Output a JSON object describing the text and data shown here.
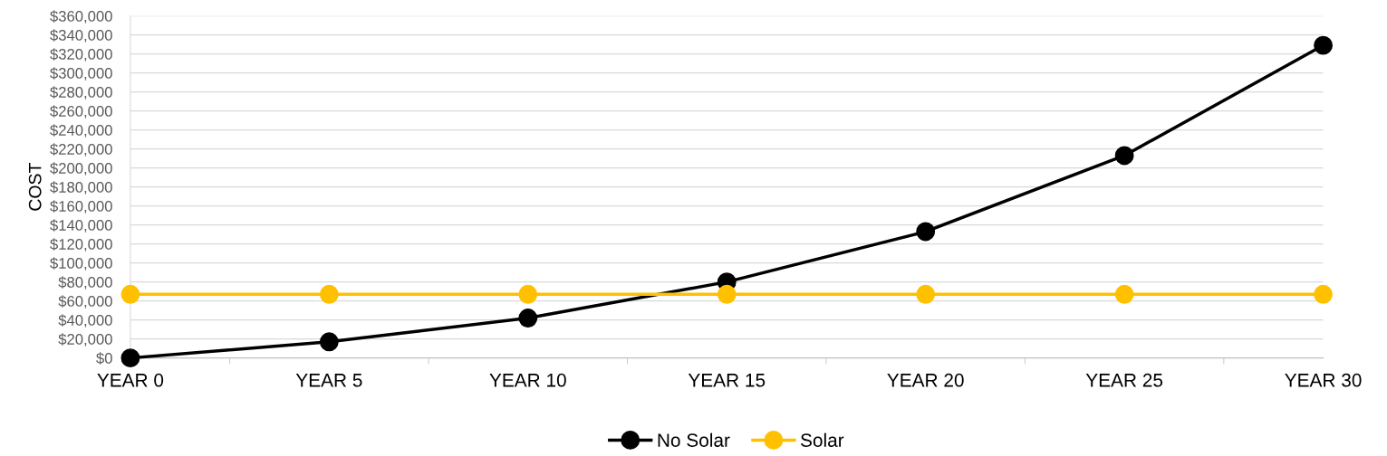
{
  "chart_data": {
    "type": "line",
    "ylabel": "COST",
    "categories": [
      "YEAR 0",
      "YEAR 5",
      "YEAR 10",
      "YEAR 15",
      "YEAR 20",
      "YEAR 25",
      "YEAR 30"
    ],
    "series": [
      {
        "name": "No Solar",
        "color": "#000000",
        "values": [
          0,
          17000,
          42000,
          80000,
          133000,
          213000,
          329000
        ]
      },
      {
        "name": "Solar",
        "color": "#ffc000",
        "values": [
          67000,
          67000,
          67000,
          67000,
          67000,
          67000,
          67000
        ]
      }
    ],
    "ylim": [
      0,
      360000
    ],
    "yticks": [
      {
        "value": 0,
        "label": "$0"
      },
      {
        "value": 20000,
        "label": "$20,000"
      },
      {
        "value": 40000,
        "label": "$40,000"
      },
      {
        "value": 60000,
        "label": "$60,000"
      },
      {
        "value": 80000,
        "label": "$80,000"
      },
      {
        "value": 100000,
        "label": "$100,000"
      },
      {
        "value": 120000,
        "label": "$120,000"
      },
      {
        "value": 140000,
        "label": "$140,000"
      },
      {
        "value": 160000,
        "label": "$160,000"
      },
      {
        "value": 180000,
        "label": "$180,000"
      },
      {
        "value": 200000,
        "label": "$200,000"
      },
      {
        "value": 220000,
        "label": "$220,000"
      },
      {
        "value": 240000,
        "label": "$240,000"
      },
      {
        "value": 260000,
        "label": "$260,000"
      },
      {
        "value": 280000,
        "label": "$280,000"
      },
      {
        "value": 300000,
        "label": "$300,000"
      },
      {
        "value": 320000,
        "label": "$320,000"
      },
      {
        "value": 340000,
        "label": "$340,000"
      },
      {
        "value": 360000,
        "label": "$360,000"
      }
    ],
    "grid": "y",
    "legend": "bottom",
    "marker": "circle",
    "line_style": "solid"
  }
}
